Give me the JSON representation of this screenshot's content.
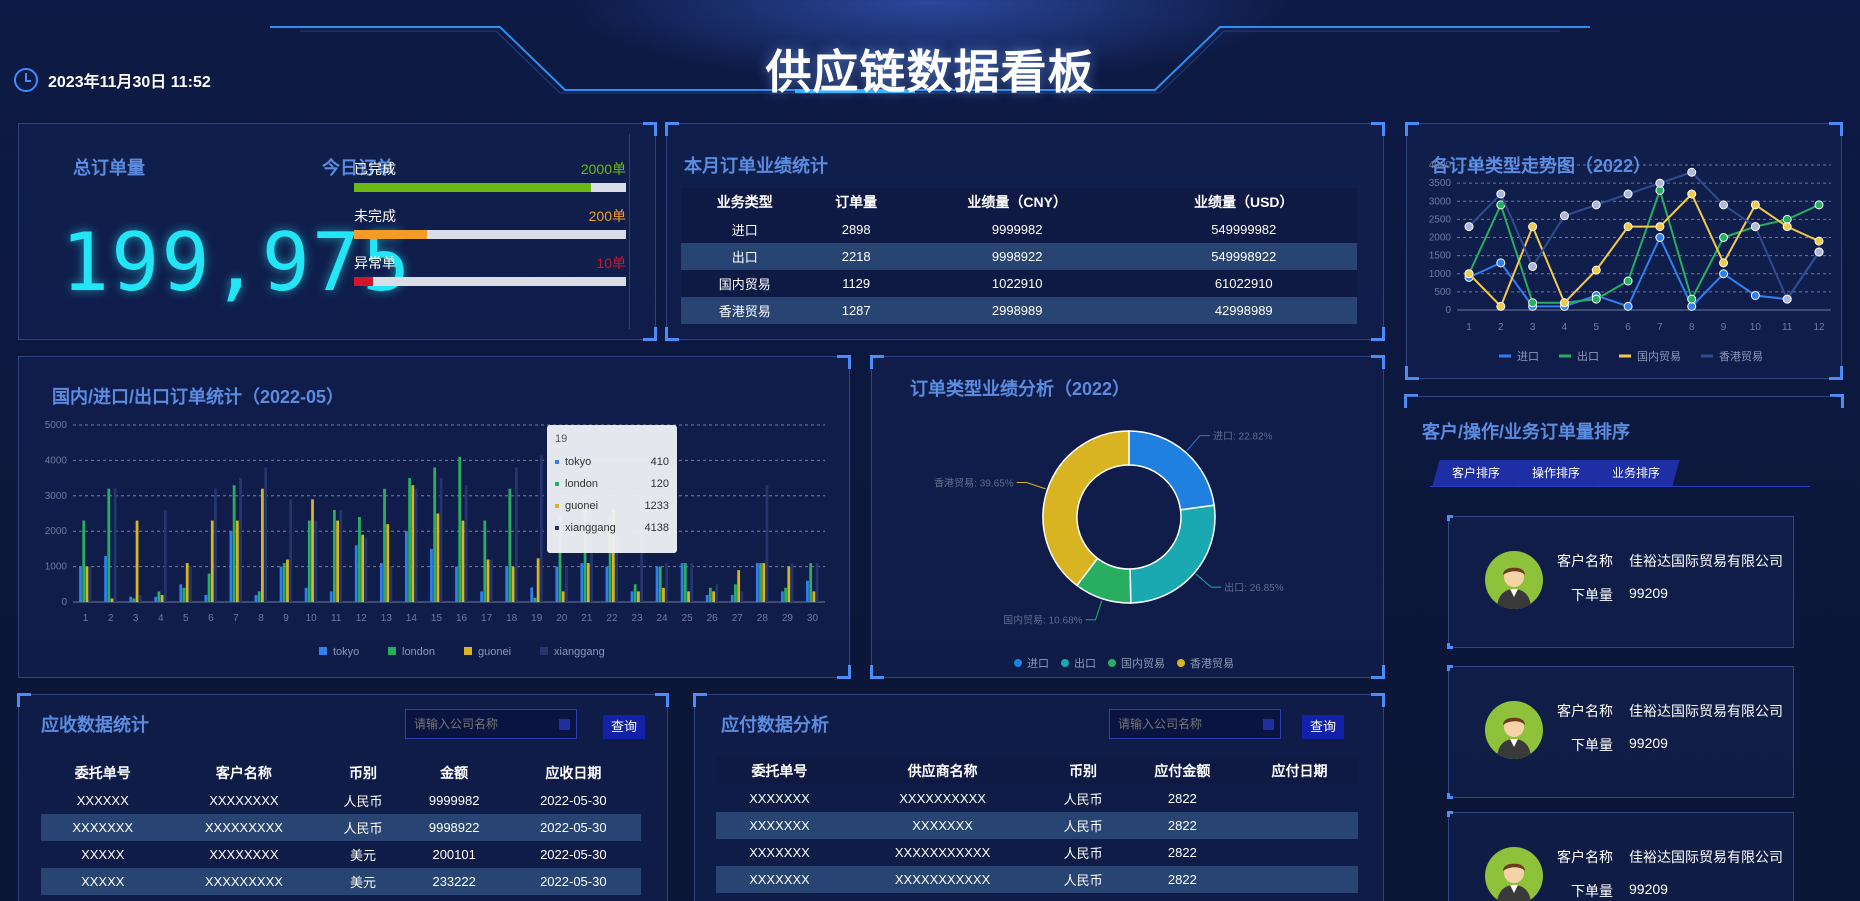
{
  "header": {
    "title": "供应链数据看板",
    "datetime": "2023年11月30日 11:52"
  },
  "total_orders": {
    "title": "总订单量",
    "value": "199,975"
  },
  "today_orders": {
    "title": "今日订单",
    "items": [
      {
        "label": "已完成",
        "value": "2000单",
        "progress": 0.87,
        "color": "#6ab913"
      },
      {
        "label": "未完成",
        "value": "200单",
        "progress": 0.27,
        "color": "#f29b26"
      },
      {
        "label": "异常单",
        "value": "10单",
        "progress": 0.07,
        "color": "#d3142a"
      }
    ]
  },
  "monthly_perf": {
    "title": "本月订单业绩统计",
    "columns": [
      "业务类型",
      "订单量",
      "业绩量（CNY）",
      "业绩量（USD）"
    ],
    "rows": [
      [
        "进口",
        "2898",
        "9999982",
        "549999982"
      ],
      [
        "出口",
        "2218",
        "9998922",
        "549998922"
      ],
      [
        "国内贸易",
        "1129",
        "1022910",
        "61022910"
      ],
      [
        "香港贸易",
        "1287",
        "2998989",
        "42998989"
      ]
    ]
  },
  "trend_chart": {
    "title": "各订单类型走势图（2022）",
    "chart_data": {
      "type": "line",
      "x": [
        "1",
        "2",
        "3",
        "4",
        "5",
        "6",
        "7",
        "8",
        "9",
        "10",
        "11",
        "12"
      ],
      "ylim": [
        0,
        4000
      ],
      "yticks": [
        "0",
        "500",
        "1000",
        "1500",
        "2000",
        "2500",
        "3000",
        "3500",
        "4000"
      ],
      "legend": "bottom",
      "series": [
        {
          "name": "进口",
          "color": "#2f80ed",
          "values": [
            900,
            1300,
            100,
            100,
            400,
            100,
            2000,
            100,
            1000,
            400,
            300,
            1600
          ]
        },
        {
          "name": "出口",
          "color": "#27ae60",
          "values": [
            1000,
            2900,
            200,
            200,
            300,
            800,
            3300,
            300,
            2000,
            2300,
            2500,
            2900
          ]
        },
        {
          "name": "国内贸易",
          "color": "#f2c94c",
          "values": [
            1000,
            100,
            2300,
            200,
            1100,
            2300,
            2300,
            3200,
            1300,
            2900,
            2300,
            1900
          ]
        },
        {
          "name": "香港贸易",
          "color": "#24356e",
          "values": [
            2300,
            3200,
            1200,
            2600,
            2900,
            3200,
            3500,
            3800,
            2900,
            2300,
            300,
            1600
          ]
        }
      ]
    }
  },
  "bar_chart": {
    "title": "国内/进口/出口订单统计（2022-05）",
    "chart_data": {
      "type": "bar",
      "categories": [
        "1",
        "2",
        "3",
        "4",
        "5",
        "6",
        "7",
        "8",
        "9",
        "10",
        "11",
        "12",
        "13",
        "14",
        "15",
        "16",
        "17",
        "18",
        "19",
        "20",
        "21",
        "22",
        "23",
        "24",
        "25",
        "26",
        "27",
        "28",
        "29",
        "30"
      ],
      "ylim": [
        0,
        5000
      ],
      "yticks": [
        "0",
        "1000",
        "2000",
        "3000",
        "4000",
        "5000"
      ],
      "legend": "bottom",
      "series": [
        {
          "name": "tokyo",
          "color": "#2f80ed",
          "values": [
            1000,
            1300,
            150,
            150,
            500,
            200,
            2000,
            200,
            1000,
            400,
            300,
            1600,
            1100,
            2000,
            1500,
            1000,
            300,
            1000,
            410,
            1000,
            1100,
            1000,
            300,
            1000,
            1100,
            200,
            200,
            1100,
            300,
            600
          ]
        },
        {
          "name": "london",
          "color": "#27ae60",
          "values": [
            2300,
            3200,
            100,
            300,
            400,
            800,
            3300,
            300,
            1100,
            2300,
            2600,
            2400,
            3200,
            3500,
            3800,
            4100,
            2300,
            3200,
            120,
            2400,
            2700,
            2400,
            500,
            1000,
            1100,
            400,
            500,
            1100,
            400,
            1100
          ]
        },
        {
          "name": "guonei",
          "color": "#d8b422",
          "values": [
            1000,
            100,
            2300,
            200,
            1100,
            2300,
            2300,
            3200,
            1200,
            2900,
            2300,
            1900,
            2200,
            3300,
            2500,
            2300,
            1200,
            1000,
            1233,
            300,
            1100,
            2600,
            300,
            400,
            300,
            300,
            900,
            1100,
            1000,
            300
          ]
        },
        {
          "name": "xianggang",
          "color": "#24356e",
          "values": [
            1000,
            3200,
            200,
            2600,
            1000,
            3200,
            3500,
            3800,
            2900,
            2300,
            2600,
            1800,
            1000,
            3200,
            3500,
            3300,
            1200,
            3800,
            4138,
            1000,
            2800,
            2000,
            1800,
            1100,
            1100,
            500,
            300,
            3300,
            1100,
            1100
          ]
        }
      ],
      "tooltip": {
        "title": "19",
        "items": [
          {
            "name": "tokyo",
            "value": "410",
            "color": "#2f80ed"
          },
          {
            "name": "london",
            "value": "120",
            "color": "#27ae60"
          },
          {
            "name": "guonei",
            "value": "1233",
            "color": "#d8b422"
          },
          {
            "name": "xianggang",
            "value": "4138",
            "color": "#24356e"
          }
        ]
      }
    }
  },
  "donut_chart": {
    "title": "订单类型业绩分析（2022）",
    "chart_data": {
      "type": "pie",
      "legend": "bottom",
      "slices": [
        {
          "name": "进口",
          "value": 22.82,
          "label": "进口: 22.82%",
          "color": "#1f80e0"
        },
        {
          "name": "出口",
          "value": 26.85,
          "label": "出口: 26.85%",
          "color": "#1aa9b0"
        },
        {
          "name": "国内贸易",
          "value": 10.68,
          "label": "国内贸易: 10.68%",
          "color": "#27ae60"
        },
        {
          "name": "香港贸易",
          "value": 39.65,
          "label": "香港贸易: 39.65%",
          "color": "#d8b422"
        }
      ]
    }
  },
  "ranking": {
    "title": "客户/操作/业务订单量排序",
    "tabs": [
      "客户排序",
      "操作排序",
      "业务排序"
    ],
    "name_label": "客户名称",
    "count_label": "下单量",
    "cards": [
      {
        "name": "佳裕达国际贸易有限公司",
        "count": "99209"
      },
      {
        "name": "佳裕达国际贸易有限公司",
        "count": "99209"
      },
      {
        "name": "佳裕达国际贸易有限公司",
        "count": "99209"
      }
    ]
  },
  "receivable": {
    "title": "应收数据统计",
    "search_placeholder": "请输入公司名称",
    "search_button": "查询",
    "columns": [
      "委托单号",
      "客户名称",
      "币别",
      "金额",
      "应收日期"
    ],
    "rows": [
      [
        "XXXXXX",
        "XXXXXXXX",
        "人民币",
        "9999982",
        "2022-05-30"
      ],
      [
        "XXXXXXX",
        "XXXXXXXXX",
        "人民币",
        "9998922",
        "2022-05-30"
      ],
      [
        "XXXXX",
        "XXXXXXXX",
        "美元",
        "200101",
        "2022-05-30"
      ],
      [
        "XXXXX",
        "XXXXXXXXX",
        "美元",
        "233222",
        "2022-05-30"
      ]
    ]
  },
  "payable": {
    "title": "应付数据分析",
    "search_placeholder": "请输入公司名称",
    "search_button": "查询",
    "columns": [
      "委托单号",
      "供应商名称",
      "币别",
      "应付金额",
      "应付日期"
    ],
    "rows": [
      [
        "XXXXXXX",
        "XXXXXXXXXX",
        "人民币",
        "2822",
        ""
      ],
      [
        "XXXXXXX",
        "XXXXXXX",
        "人民币",
        "2822",
        ""
      ],
      [
        "XXXXXXX",
        "XXXXXXXXXXX",
        "人民币",
        "2822",
        ""
      ],
      [
        "XXXXXXX",
        "XXXXXXXXXXX",
        "人民币",
        "2822",
        ""
      ]
    ]
  }
}
